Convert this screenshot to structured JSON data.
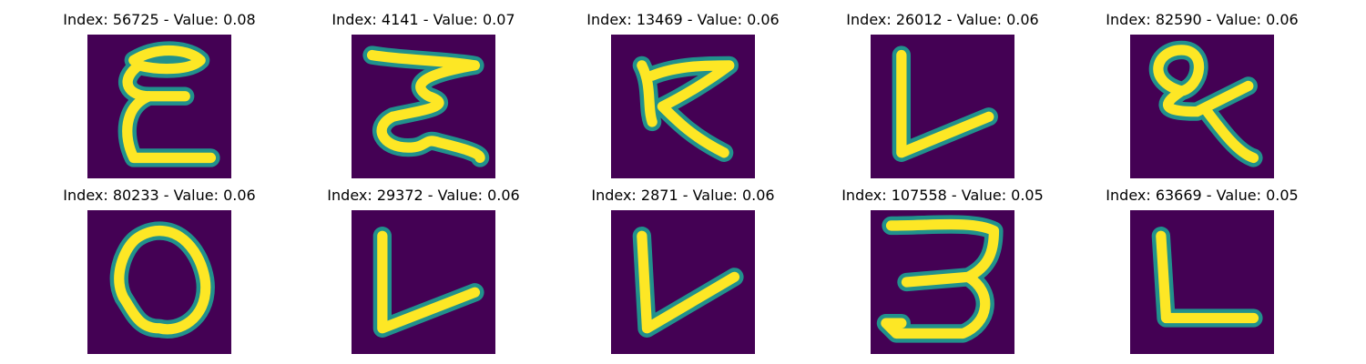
{
  "colors": {
    "background": "#440154",
    "mid": "#21918c",
    "stroke": "#fde725"
  },
  "panels": [
    {
      "title": "Index: 56725 - Value: 0.08",
      "glyph": "E"
    },
    {
      "title": "Index: 4141 - Value: 0.07",
      "glyph": "Z"
    },
    {
      "title": "Index: 13469 - Value: 0.06",
      "glyph": "K"
    },
    {
      "title": "Index: 26012 - Value: 0.06",
      "glyph": "L"
    },
    {
      "title": "Index: 82590 - Value: 0.06",
      "glyph": "Q"
    },
    {
      "title": "Index: 80233 - Value: 0.06",
      "glyph": "O"
    },
    {
      "title": "Index: 29372 - Value: 0.06",
      "glyph": "L"
    },
    {
      "title": "Index: 2871 - Value: 0.06",
      "glyph": "L"
    },
    {
      "title": "Index: 107558 - Value: 0.05",
      "glyph": "3"
    },
    {
      "title": "Index: 63669 - Value: 0.05",
      "glyph": "L"
    }
  ]
}
